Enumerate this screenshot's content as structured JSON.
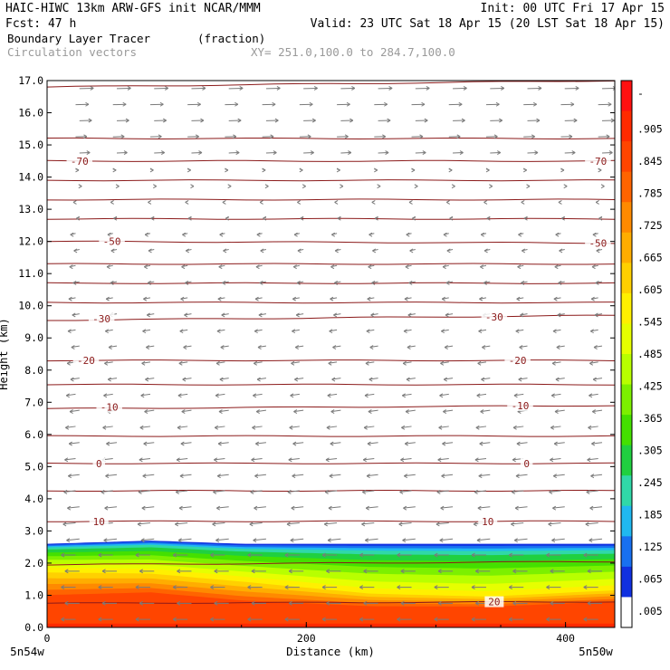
{
  "header": {
    "line1_left": "HAIC-HIWC 13km ARW-GFS init   NCAR/MMM",
    "line1_right": "Init: 00 UTC Fri 17 Apr 15",
    "line2_left": "Fcst:   47 h",
    "line2_right": "Valid: 23 UTC Sat 18 Apr 15 (20 LST Sat 18 Apr 15)",
    "field_name": "Boundary Layer Tracer",
    "field_units": "(fraction)",
    "vector_label": "Circulation vectors",
    "xy_label": "XY= 251.0,100.0 to 284.7,100.0"
  },
  "colors": {
    "temperature_contour": "#8b1a1a",
    "vectors": "#7a7a7a",
    "background": "#ffffff"
  },
  "chart_data": {
    "type": "heatmap",
    "xlabel": "Distance (km)",
    "ylabel": "Height (km)",
    "xlim": [
      0,
      438
    ],
    "ylim": [
      0,
      17
    ],
    "x_ticks": [
      {
        "value": 0,
        "label": "0"
      },
      {
        "value": 200,
        "label": "200"
      },
      {
        "value": 400,
        "label": "400"
      }
    ],
    "x_end_labels": {
      "left": "5n54w",
      "right": "5n50w"
    },
    "y_ticks": [
      {
        "value": 0,
        "label": "0.0"
      },
      {
        "value": 1,
        "label": "1.0"
      },
      {
        "value": 2,
        "label": "2.0"
      },
      {
        "value": 3,
        "label": "3.0"
      },
      {
        "value": 4,
        "label": "4.0"
      },
      {
        "value": 5,
        "label": "5.0"
      },
      {
        "value": 6,
        "label": "6.0"
      },
      {
        "value": 7,
        "label": "7.0"
      },
      {
        "value": 8,
        "label": "8.0"
      },
      {
        "value": 9,
        "label": "9.0"
      },
      {
        "value": 10,
        "label": "10.0"
      },
      {
        "value": 11,
        "label": "11.0"
      },
      {
        "value": 12,
        "label": "12.0"
      },
      {
        "value": 13,
        "label": "13.0"
      },
      {
        "value": 14,
        "label": "14.0"
      },
      {
        "value": 15,
        "label": "15.0"
      },
      {
        "value": 16,
        "label": "16.0"
      },
      {
        "value": 17,
        "label": "17.0"
      }
    ],
    "colorbar": {
      "labels": [
        "-",
        ".905",
        ".845",
        ".785",
        ".725",
        ".665",
        ".605",
        ".545",
        ".485",
        ".425",
        ".365",
        ".305",
        ".245",
        ".185",
        ".125",
        ".065",
        ".005"
      ],
      "colors": [
        "#ff1010",
        "#ff2a00",
        "#ff4500",
        "#ff6400",
        "#ff8a00",
        "#ffad00",
        "#ffd000",
        "#fff000",
        "#e6ff00",
        "#b8ff00",
        "#7cf000",
        "#44e000",
        "#20d040",
        "#30d8a8",
        "#20b8f0",
        "#1870f0",
        "#1030e0",
        "#ffffff"
      ]
    },
    "tracer_profile": [
      {
        "x": 0,
        "top": 2.6,
        "mid": 1.8,
        "red": 0.9
      },
      {
        "x": 80,
        "top": 2.7,
        "mid": 1.75,
        "red": 1.0
      },
      {
        "x": 150,
        "top": 2.6,
        "mid": 1.5,
        "red": 0.75
      },
      {
        "x": 250,
        "top": 2.6,
        "mid": 1.1,
        "red": 0.6
      },
      {
        "x": 340,
        "top": 2.6,
        "mid": 1.0,
        "red": 0.6
      },
      {
        "x": 438,
        "top": 2.6,
        "mid": 1.2,
        "red": 0.75
      }
    ],
    "temperature_contours": [
      {
        "y_left": 16.8,
        "y_right": 17.0
      },
      {
        "y_left": 15.2,
        "y_right": 15.2
      },
      {
        "y_left": 14.5,
        "y_right": 14.5,
        "label": "-70"
      },
      {
        "y_left": 13.9,
        "y_right": 13.9
      },
      {
        "y_left": 13.3,
        "y_right": 13.3
      },
      {
        "y_left": 12.7,
        "y_right": 12.7
      },
      {
        "y_left": 12.0,
        "y_right": 11.95,
        "label": "-50"
      },
      {
        "y_left": 11.3,
        "y_right": 11.3
      },
      {
        "y_left": 10.7,
        "y_right": 10.7
      },
      {
        "y_left": 10.1,
        "y_right": 10.1
      },
      {
        "y_left": 9.55,
        "y_right": 9.7,
        "label": "-30"
      },
      {
        "y_left": 8.3,
        "y_right": 8.3,
        "label": "-20"
      },
      {
        "y_left": 7.55,
        "y_right": 7.55
      },
      {
        "y_left": 6.8,
        "y_right": 6.9,
        "label": "-10"
      },
      {
        "y_left": 5.95,
        "y_right": 5.95
      },
      {
        "y_left": 5.1,
        "y_right": 5.1,
        "label": "0"
      },
      {
        "y_left": 4.25,
        "y_right": 4.25
      },
      {
        "y_left": 3.3,
        "y_right": 3.3,
        "label": "10"
      },
      {
        "y_left": 1.95,
        "y_right": 2.05
      },
      {
        "y_left": 0.75,
        "y_right": 0.8,
        "label": "20"
      }
    ],
    "contour_labels": [
      {
        "text": "-70",
        "x": 25,
        "y": 14.5
      },
      {
        "text": "-70",
        "x": 425,
        "y": 14.5
      },
      {
        "text": "-50",
        "x": 50,
        "y": 12.0
      },
      {
        "text": "-50",
        "x": 425,
        "y": 11.95
      },
      {
        "text": "-30",
        "x": 42,
        "y": 9.6
      },
      {
        "text": "-30",
        "x": 345,
        "y": 9.65
      },
      {
        "text": "-20",
        "x": 30,
        "y": 8.3
      },
      {
        "text": "-20",
        "x": 363,
        "y": 8.3
      },
      {
        "text": "-10",
        "x": 48,
        "y": 6.85
      },
      {
        "text": "-10",
        "x": 365,
        "y": 6.9
      },
      {
        "text": "0",
        "x": 40,
        "y": 5.1
      },
      {
        "text": "0",
        "x": 370,
        "y": 5.1
      },
      {
        "text": "10",
        "x": 40,
        "y": 3.3
      },
      {
        "text": "10",
        "x": 340,
        "y": 3.3
      },
      {
        "text": "20",
        "x": 345,
        "y": 0.8
      }
    ]
  }
}
